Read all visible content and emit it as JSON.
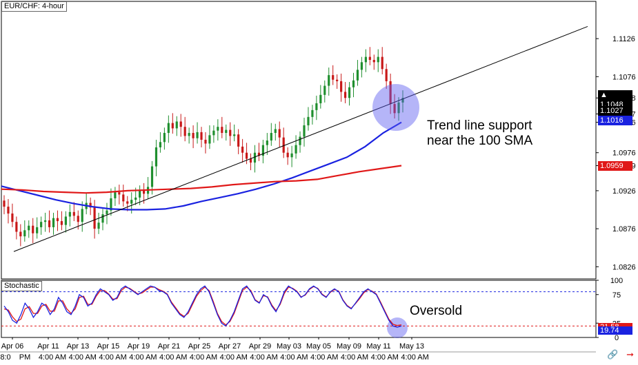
{
  "window": {
    "title": "EUR/CHF: 4-hour"
  },
  "main_chart": {
    "price_axis_ticks": [
      "1.1126",
      "1.1076",
      "1.1048",
      "1.1027",
      "1.1016",
      "1.0976",
      "1.0959",
      "1.0926",
      "1.0876",
      "1.0826"
    ],
    "badges": [
      {
        "label": "1.1048",
        "bg": "#000000",
        "fg": "#ffffff",
        "arrow": "▲"
      },
      {
        "label": "1.1027",
        "bg": "#000000",
        "fg": "#ffffff",
        "arrow": ""
      },
      {
        "label": "1.1016",
        "bg": "#1a22e0",
        "fg": "#ffffff",
        "arrow": ""
      },
      {
        "label": "1.0959",
        "bg": "#e01818",
        "fg": "#ffffff",
        "arrow": ""
      }
    ],
    "annotation": {
      "line1": "Trend line support",
      "line2": "near the 100 SMA"
    },
    "colors": {
      "up": "#1f8f2e",
      "down": "#c81818",
      "sma100": "#1a22e0",
      "sma200": "#e01818",
      "trendline": "#000000",
      "highlight": "#5a5af0"
    }
  },
  "stochastic": {
    "label": "Stochastic",
    "ticks": [
      "100",
      "75",
      "25",
      "0"
    ],
    "badges": [
      {
        "label": "21.58",
        "bg": "#e01818",
        "fg": "#ffffff"
      },
      {
        "label": "19.74",
        "bg": "#1a22e0",
        "fg": "#ffffff"
      }
    ],
    "levels": [
      80,
      20
    ],
    "annotation": "Oversold",
    "colors": {
      "k": "#1a22e0",
      "d": "#e01818"
    }
  },
  "time_axis": {
    "dates": [
      "Apr 06",
      "Apr 11",
      "Apr 13",
      "Apr 15",
      "Apr 19",
      "Apr 21",
      "Apr 25",
      "Apr 27",
      "Apr 29",
      "May 03",
      "May 05",
      "May 09",
      "May 11",
      "May 13"
    ],
    "bottom_labels": [
      "8:0",
      "PM",
      "4:00 AM",
      "4:00 AM",
      "4:00 AM",
      "4:00 AM",
      "4:00 AM",
      "4:00 AM",
      "4:00 AM",
      "4:00 AM",
      "4:00 AM",
      "4:00 AM",
      "4:00 AM",
      "4:00 AM",
      "4:00 AM"
    ]
  },
  "chart_data": [
    {
      "type": "candlestick",
      "title": "EUR/CHF: 4-hour",
      "ylim": [
        1.081,
        1.1175
      ],
      "series": [
        {
          "name": "price_close",
          "values": [
            1.0905,
            1.0896,
            1.0885,
            1.0872,
            1.0866,
            1.0874,
            1.088,
            1.087,
            1.0878,
            1.0885,
            1.0887,
            1.0878,
            1.089,
            1.0886,
            1.0881,
            1.0892,
            1.0898,
            1.0893,
            1.0885,
            1.0902,
            1.091,
            1.0904,
            1.0876,
            1.0884,
            1.0895,
            1.09,
            1.0916,
            1.0924,
            1.0921,
            1.0912,
            1.0909,
            1.0914,
            1.0917,
            1.0926,
            1.0922,
            1.0931,
            1.0958,
            1.0983,
            1.099,
            1.1002,
            1.1015,
            1.1008,
            1.1017,
            1.101,
            1.0998,
            1.1002,
            1.0995,
            1.1003,
            1.0993,
            1.0988,
            1.0999,
            1.1005,
            1.101,
            1.1002,
            1.1006,
            1.0998,
            1.1,
            1.0984,
            1.0976,
            1.0968,
            1.0963,
            1.0976,
            1.0972,
            1.0986,
            1.0992,
            1.1002,
            1.1007,
            1.0996,
            1.0976,
            1.097,
            1.0975,
            1.0986,
            1.0997,
            1.1012,
            1.1023,
            1.1032,
            1.1041,
            1.1052,
            1.1064,
            1.1078,
            1.1072,
            1.107,
            1.1056,
            1.1048,
            1.1062,
            1.1071,
            1.1085,
            1.1095,
            1.1102,
            1.1098,
            1.1095,
            1.1102,
            1.1086,
            1.107,
            1.104,
            1.1028,
            1.1042,
            1.1048
          ]
        },
        {
          "name": "100 SMA",
          "values": [
            1.0932,
            1.0926,
            1.092,
            1.0914,
            1.0909,
            1.0905,
            1.0902,
            1.0901,
            1.0901,
            1.0902,
            1.0906,
            1.0912,
            1.0917,
            1.0922,
            1.0928,
            1.0935,
            1.0943,
            1.0952,
            1.0961,
            1.097,
            1.0984,
            1.1002,
            1.1016
          ]
        },
        {
          "name": "200 SMA",
          "values": [
            1.0928,
            1.0927,
            1.0925,
            1.0924,
            1.0923,
            1.0924,
            1.0926,
            1.0927,
            1.0928,
            1.0929,
            1.0931,
            1.0934,
            1.0936,
            1.0938,
            1.0939,
            1.0941,
            1.0946,
            1.0951,
            1.0955,
            1.0959
          ]
        },
        {
          "name": "trend line",
          "values": [
            1.0846,
            1.1142
          ]
        }
      ],
      "ylabel": "",
      "xlabel": ""
    },
    {
      "type": "line",
      "title": "Stochastic",
      "ylim": [
        0,
        100
      ],
      "series": [
        {
          "name": "%K",
          "values": [
            55,
            45,
            30,
            25,
            40,
            60,
            50,
            35,
            45,
            60,
            55,
            40,
            50,
            70,
            60,
            45,
            40,
            55,
            75,
            70,
            55,
            60,
            75,
            85,
            80,
            75,
            65,
            70,
            85,
            90,
            85,
            80,
            75,
            80,
            85,
            90,
            88,
            82,
            80,
            75,
            60,
            50,
            40,
            35,
            45,
            60,
            75,
            85,
            90,
            80,
            60,
            40,
            25,
            20,
            30,
            45,
            65,
            85,
            90,
            80,
            65,
            60,
            75,
            70,
            55,
            45,
            60,
            80,
            90,
            85,
            80,
            70,
            75,
            85,
            90,
            85,
            75,
            70,
            80,
            85,
            80,
            65,
            55,
            50,
            60,
            70,
            80,
            85,
            80,
            75,
            60,
            45,
            30,
            20,
            18,
            20
          ]
        },
        {
          "name": "%D",
          "values": [
            50,
            48,
            36,
            28,
            32,
            50,
            54,
            42,
            42,
            55,
            58,
            46,
            46,
            64,
            64,
            50,
            42,
            50,
            70,
            72,
            58,
            58,
            72,
            82,
            82,
            76,
            67,
            68,
            82,
            88,
            86,
            81,
            76,
            78,
            83,
            88,
            88,
            84,
            81,
            76,
            62,
            52,
            42,
            37,
            42,
            57,
            72,
            82,
            88,
            82,
            63,
            42,
            28,
            22,
            28,
            42,
            62,
            82,
            88,
            82,
            66,
            61,
            73,
            71,
            57,
            47,
            58,
            77,
            88,
            86,
            81,
            71,
            74,
            84,
            89,
            86,
            76,
            71,
            79,
            84,
            81,
            66,
            56,
            51,
            59,
            68,
            78,
            84,
            81,
            76,
            62,
            47,
            32,
            23,
            21,
            22
          ]
        }
      ],
      "levels": [
        80,
        20
      ]
    }
  ]
}
